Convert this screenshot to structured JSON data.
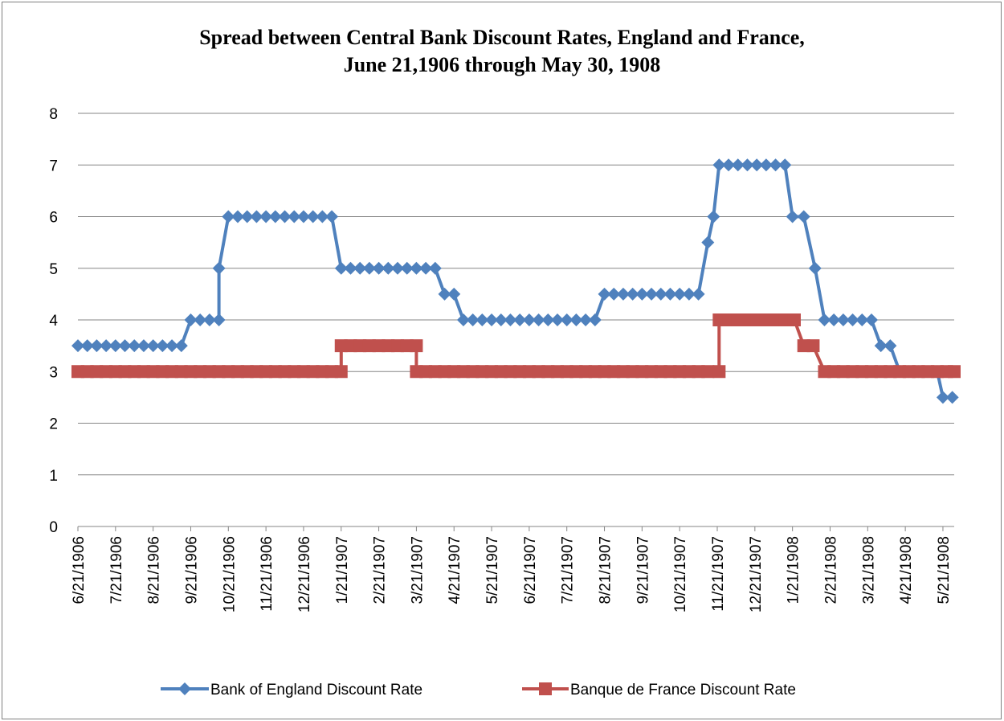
{
  "chart_data": {
    "type": "line",
    "title_line1": "Spread between Central Bank Discount Rates, England and France,",
    "title_line2": "June 21,1906 through May 30, 1908",
    "xlabel": "",
    "ylabel": "",
    "ylim": [
      0,
      8
    ],
    "yticks": [
      0,
      1,
      2,
      3,
      4,
      5,
      6,
      7,
      8
    ],
    "grid": true,
    "legend_position": "bottom",
    "x_tick_labels": [
      "6/21/1906",
      "7/21/1906",
      "8/21/1906",
      "9/21/1906",
      "10/21/1906",
      "11/21/1906",
      "12/21/1906",
      "1/21/1907",
      "2/21/1907",
      "3/21/1907",
      "4/21/1907",
      "5/21/1907",
      "6/21/1907",
      "7/21/1907",
      "8/21/1907",
      "9/21/1907",
      "10/21/1907",
      "11/21/1907",
      "12/21/1907",
      "1/21/1908",
      "2/21/1908",
      "3/21/1908",
      "4/21/1908",
      "5/21/1908"
    ],
    "x_range_months": [
      0,
      23.3
    ],
    "series": [
      {
        "name": "Bank of England Discount Rate",
        "color": "#4f81bd",
        "marker": "diamond",
        "points": [
          [
            0.0,
            3.5
          ],
          [
            0.25,
            3.5
          ],
          [
            0.5,
            3.5
          ],
          [
            0.75,
            3.5
          ],
          [
            1.0,
            3.5
          ],
          [
            1.25,
            3.5
          ],
          [
            1.5,
            3.5
          ],
          [
            1.75,
            3.5
          ],
          [
            2.0,
            3.5
          ],
          [
            2.25,
            3.5
          ],
          [
            2.5,
            3.5
          ],
          [
            2.75,
            3.5
          ],
          [
            3.0,
            4.0
          ],
          [
            3.25,
            4.0
          ],
          [
            3.5,
            4.0
          ],
          [
            3.75,
            4.0
          ],
          [
            3.75,
            5.0
          ],
          [
            4.0,
            6.0
          ],
          [
            4.25,
            6.0
          ],
          [
            4.5,
            6.0
          ],
          [
            4.75,
            6.0
          ],
          [
            5.0,
            6.0
          ],
          [
            5.25,
            6.0
          ],
          [
            5.5,
            6.0
          ],
          [
            5.75,
            6.0
          ],
          [
            6.0,
            6.0
          ],
          [
            6.25,
            6.0
          ],
          [
            6.5,
            6.0
          ],
          [
            6.75,
            6.0
          ],
          [
            7.0,
            5.0
          ],
          [
            7.25,
            5.0
          ],
          [
            7.5,
            5.0
          ],
          [
            7.75,
            5.0
          ],
          [
            8.0,
            5.0
          ],
          [
            8.25,
            5.0
          ],
          [
            8.5,
            5.0
          ],
          [
            8.75,
            5.0
          ],
          [
            9.0,
            5.0
          ],
          [
            9.25,
            5.0
          ],
          [
            9.5,
            5.0
          ],
          [
            9.75,
            4.5
          ],
          [
            10.0,
            4.5
          ],
          [
            10.25,
            4.0
          ],
          [
            10.5,
            4.0
          ],
          [
            10.75,
            4.0
          ],
          [
            11.0,
            4.0
          ],
          [
            11.25,
            4.0
          ],
          [
            11.5,
            4.0
          ],
          [
            11.75,
            4.0
          ],
          [
            12.0,
            4.0
          ],
          [
            12.25,
            4.0
          ],
          [
            12.5,
            4.0
          ],
          [
            12.75,
            4.0
          ],
          [
            13.0,
            4.0
          ],
          [
            13.25,
            4.0
          ],
          [
            13.5,
            4.0
          ],
          [
            13.75,
            4.0
          ],
          [
            14.0,
            4.5
          ],
          [
            14.25,
            4.5
          ],
          [
            14.5,
            4.5
          ],
          [
            14.75,
            4.5
          ],
          [
            15.0,
            4.5
          ],
          [
            15.25,
            4.5
          ],
          [
            15.5,
            4.5
          ],
          [
            15.75,
            4.5
          ],
          [
            16.0,
            4.5
          ],
          [
            16.25,
            4.5
          ],
          [
            16.5,
            4.5
          ],
          [
            16.75,
            5.5
          ],
          [
            16.9,
            6.0
          ],
          [
            17.05,
            7.0
          ],
          [
            17.3,
            7.0
          ],
          [
            17.55,
            7.0
          ],
          [
            17.8,
            7.0
          ],
          [
            18.05,
            7.0
          ],
          [
            18.3,
            7.0
          ],
          [
            18.55,
            7.0
          ],
          [
            18.8,
            7.0
          ],
          [
            19.0,
            6.0
          ],
          [
            19.3,
            6.0
          ],
          [
            19.6,
            5.0
          ],
          [
            19.85,
            4.0
          ],
          [
            20.1,
            4.0
          ],
          [
            20.35,
            4.0
          ],
          [
            20.6,
            4.0
          ],
          [
            20.85,
            4.0
          ],
          [
            21.1,
            4.0
          ],
          [
            21.35,
            3.5
          ],
          [
            21.6,
            3.5
          ],
          [
            21.85,
            3.0
          ],
          [
            22.1,
            3.0
          ],
          [
            22.35,
            3.0
          ],
          [
            22.6,
            3.0
          ],
          [
            22.85,
            3.0
          ],
          [
            23.0,
            2.5
          ],
          [
            23.25,
            2.5
          ]
        ]
      },
      {
        "name": "Banque de France Discount Rate",
        "color": "#c0504d",
        "marker": "square",
        "points": [
          [
            0.0,
            3.0
          ],
          [
            0.25,
            3.0
          ],
          [
            0.5,
            3.0
          ],
          [
            0.75,
            3.0
          ],
          [
            1.0,
            3.0
          ],
          [
            1.25,
            3.0
          ],
          [
            1.5,
            3.0
          ],
          [
            1.75,
            3.0
          ],
          [
            2.0,
            3.0
          ],
          [
            2.25,
            3.0
          ],
          [
            2.5,
            3.0
          ],
          [
            2.75,
            3.0
          ],
          [
            3.0,
            3.0
          ],
          [
            3.25,
            3.0
          ],
          [
            3.5,
            3.0
          ],
          [
            3.75,
            3.0
          ],
          [
            4.0,
            3.0
          ],
          [
            4.25,
            3.0
          ],
          [
            4.5,
            3.0
          ],
          [
            4.75,
            3.0
          ],
          [
            5.0,
            3.0
          ],
          [
            5.25,
            3.0
          ],
          [
            5.5,
            3.0
          ],
          [
            5.75,
            3.0
          ],
          [
            6.0,
            3.0
          ],
          [
            6.25,
            3.0
          ],
          [
            6.5,
            3.0
          ],
          [
            6.75,
            3.0
          ],
          [
            7.0,
            3.0
          ],
          [
            7.0,
            3.5
          ],
          [
            7.25,
            3.5
          ],
          [
            7.5,
            3.5
          ],
          [
            7.75,
            3.5
          ],
          [
            8.0,
            3.5
          ],
          [
            8.25,
            3.5
          ],
          [
            8.5,
            3.5
          ],
          [
            8.75,
            3.5
          ],
          [
            9.0,
            3.5
          ],
          [
            9.0,
            3.0
          ],
          [
            9.25,
            3.0
          ],
          [
            9.5,
            3.0
          ],
          [
            9.75,
            3.0
          ],
          [
            10.0,
            3.0
          ],
          [
            10.25,
            3.0
          ],
          [
            10.5,
            3.0
          ],
          [
            10.75,
            3.0
          ],
          [
            11.0,
            3.0
          ],
          [
            11.25,
            3.0
          ],
          [
            11.5,
            3.0
          ],
          [
            11.75,
            3.0
          ],
          [
            12.0,
            3.0
          ],
          [
            12.25,
            3.0
          ],
          [
            12.5,
            3.0
          ],
          [
            12.75,
            3.0
          ],
          [
            13.0,
            3.0
          ],
          [
            13.25,
            3.0
          ],
          [
            13.5,
            3.0
          ],
          [
            13.75,
            3.0
          ],
          [
            14.0,
            3.0
          ],
          [
            14.25,
            3.0
          ],
          [
            14.5,
            3.0
          ],
          [
            14.75,
            3.0
          ],
          [
            15.0,
            3.0
          ],
          [
            15.25,
            3.0
          ],
          [
            15.5,
            3.0
          ],
          [
            15.75,
            3.0
          ],
          [
            16.0,
            3.0
          ],
          [
            16.25,
            3.0
          ],
          [
            16.5,
            3.0
          ],
          [
            16.75,
            3.0
          ],
          [
            17.05,
            3.0
          ],
          [
            17.05,
            4.0
          ],
          [
            17.3,
            4.0
          ],
          [
            17.55,
            4.0
          ],
          [
            17.8,
            4.0
          ],
          [
            18.05,
            4.0
          ],
          [
            18.3,
            4.0
          ],
          [
            18.55,
            4.0
          ],
          [
            18.8,
            4.0
          ],
          [
            19.05,
            4.0
          ],
          [
            19.3,
            3.5
          ],
          [
            19.55,
            3.5
          ],
          [
            19.85,
            3.0
          ],
          [
            20.1,
            3.0
          ],
          [
            20.35,
            3.0
          ],
          [
            20.6,
            3.0
          ],
          [
            20.85,
            3.0
          ],
          [
            21.1,
            3.0
          ],
          [
            21.35,
            3.0
          ],
          [
            21.6,
            3.0
          ],
          [
            21.85,
            3.0
          ],
          [
            22.1,
            3.0
          ],
          [
            22.35,
            3.0
          ],
          [
            22.6,
            3.0
          ],
          [
            22.85,
            3.0
          ],
          [
            23.1,
            3.0
          ],
          [
            23.3,
            3.0
          ]
        ]
      }
    ]
  }
}
